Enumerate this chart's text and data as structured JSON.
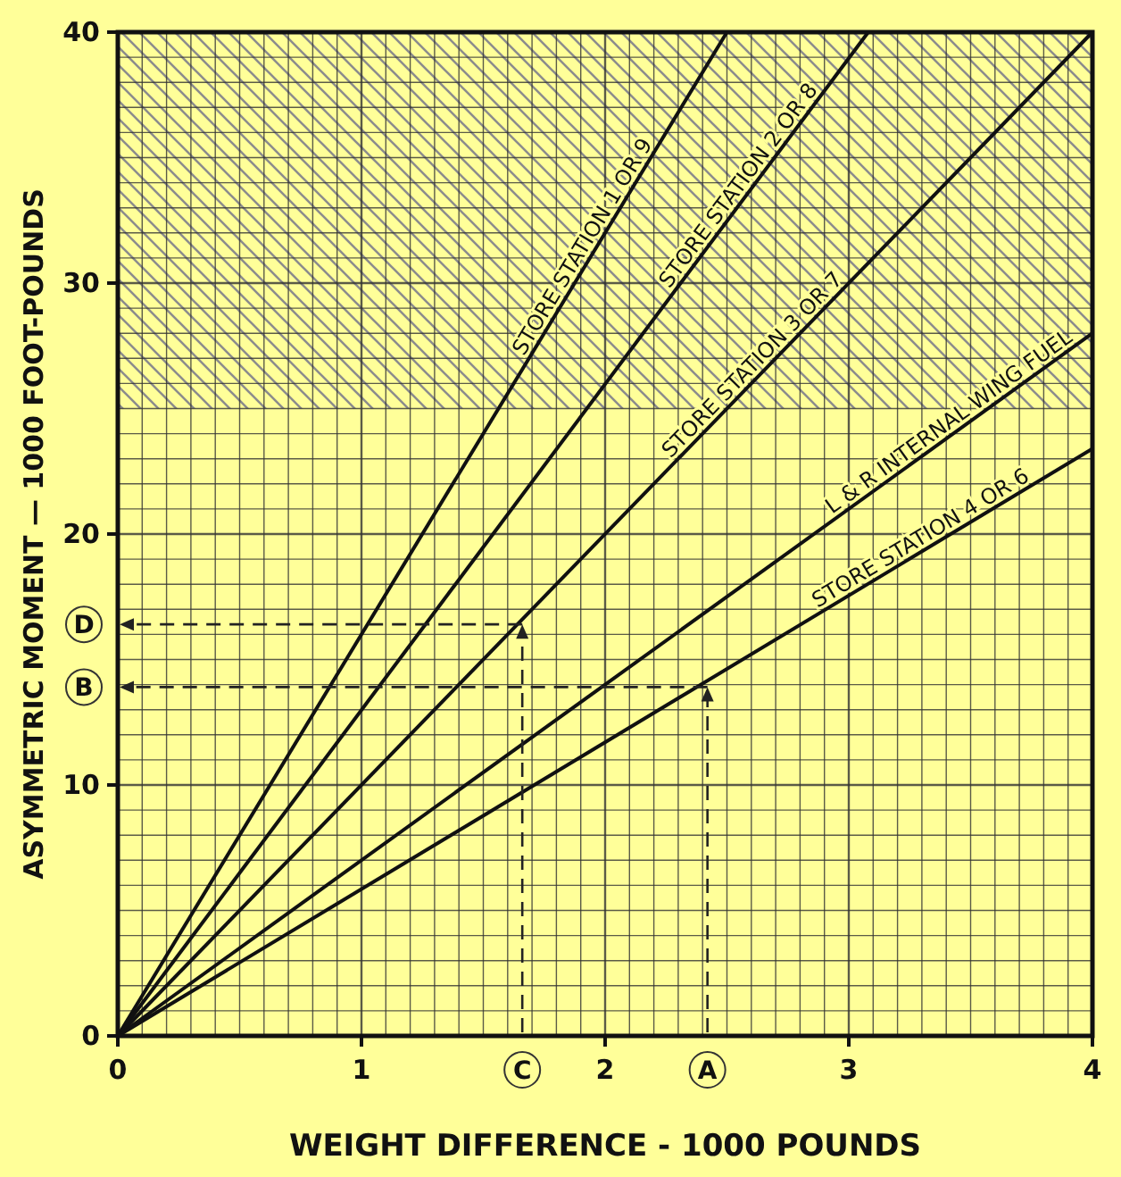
{
  "chart_data": {
    "type": "line",
    "xlabel": "WEIGHT DIFFERENCE - 1000 POUNDS",
    "ylabel": "ASYMMETRIC MOMENT — 1000 FOOT-POUNDS",
    "xlim": [
      0,
      4
    ],
    "ylim": [
      0,
      40
    ],
    "xticks": [
      0,
      {
        "value": 0.1,
        "label": null
      },
      {
        "value": 0.2,
        "label": null
      },
      {
        "value": 0.3,
        "label": null
      },
      {
        "value": 0.4,
        "label": null
      },
      {
        "value": 0.5,
        "label": null
      },
      {
        "value": 0.6,
        "label": null
      },
      {
        "value": 0.7,
        "label": null
      },
      {
        "value": 0.8,
        "label": null
      },
      {
        "value": 0.9,
        "label": null
      },
      1,
      {
        "value": 1.1,
        "label": null
      },
      {
        "value": 1.2,
        "label": null
      },
      {
        "value": 1.3,
        "label": null
      },
      {
        "value": 1.4,
        "label": null
      },
      {
        "value": 1.5,
        "label": null
      },
      {
        "value": 1.6,
        "label": null
      },
      {
        "value": 1.7,
        "label": null
      },
      {
        "value": 1.8,
        "label": null
      },
      {
        "value": 1.9,
        "label": null
      },
      2,
      {
        "value": 2.1,
        "label": null
      },
      {
        "value": 2.2,
        "label": null
      },
      {
        "value": 2.3,
        "label": null
      },
      {
        "value": 2.4,
        "label": null
      },
      {
        "value": 2.5,
        "label": null
      },
      {
        "value": 2.6,
        "label": null
      },
      {
        "value": 2.7,
        "label": null
      },
      {
        "value": 2.8,
        "label": null
      },
      {
        "value": 2.9,
        "label": null
      },
      3,
      {
        "value": 3.1,
        "label": null
      },
      {
        "value": 3.2,
        "label": null
      },
      {
        "value": 3.3,
        "label": null
      },
      {
        "value": 3.4,
        "label": null
      },
      {
        "value": 3.5,
        "label": null
      },
      {
        "value": 3.6,
        "label": null
      },
      {
        "value": 3.7,
        "label": null
      },
      {
        "value": 3.8,
        "label": null
      },
      {
        "value": 3.9,
        "label": null
      },
      4
    ],
    "yticks": [
      0,
      {
        "value": 1,
        "label": null
      },
      {
        "value": 2,
        "label": null
      },
      {
        "value": 3,
        "label": null
      },
      {
        "value": 4,
        "label": null
      },
      {
        "value": 5,
        "label": null
      },
      {
        "value": 6,
        "label": null
      },
      {
        "value": 7,
        "label": null
      },
      {
        "value": 8,
        "label": null
      },
      {
        "value": 9,
        "label": null
      },
      10,
      {
        "value": 11,
        "label": null
      },
      {
        "value": 12,
        "label": null
      },
      {
        "value": 13,
        "label": null
      },
      {
        "value": 14,
        "label": null
      },
      {
        "value": 15,
        "label": null
      },
      {
        "value": 16,
        "label": null
      },
      {
        "value": 17,
        "label": null
      },
      {
        "value": 18,
        "label": null
      },
      {
        "value": 19,
        "label": null
      },
      20,
      {
        "value": 21,
        "label": null
      },
      {
        "value": 22,
        "label": null
      },
      {
        "value": 23,
        "label": null
      },
      {
        "value": 24,
        "label": null
      },
      {
        "value": 25,
        "label": null
      },
      {
        "value": 26,
        "label": null
      },
      {
        "value": 27,
        "label": null
      },
      {
        "value": 28,
        "label": null
      },
      {
        "value": 29,
        "label": null
      },
      30,
      {
        "value": 31,
        "label": null
      },
      {
        "value": 32,
        "label": null
      },
      {
        "value": 33,
        "label": null
      },
      {
        "value": 34,
        "label": null
      },
      {
        "value": 35,
        "label": null
      },
      {
        "value": 36,
        "label": null
      },
      {
        "value": 37,
        "label": null
      },
      {
        "value": 38,
        "label": null
      },
      {
        "value": 39,
        "label": null
      },
      40
    ],
    "grid": true,
    "marker": "none",
    "line_style": "solid",
    "bands": [
      {
        "axis": "y",
        "from": 25,
        "to": 40,
        "color": "#8c8c8c"
      }
    ],
    "series": [
      {
        "name": "STORE STATION 1 OR 9",
        "color": "#111111",
        "x": [
          0,
          2.5
        ],
        "values": [
          0,
          40
        ]
      },
      {
        "name": "STORE STATION 2 OR 8",
        "color": "#111111",
        "x": [
          0,
          3.08
        ],
        "values": [
          0,
          40
        ]
      },
      {
        "name": "STORE STATION 3 OR 7",
        "color": "#111111",
        "x": [
          0,
          4
        ],
        "values": [
          0,
          40
        ]
      },
      {
        "name": "L & R INTERNAL WING FUEL",
        "color": "#111111",
        "x": [
          0,
          4
        ],
        "values": [
          0,
          28
        ]
      },
      {
        "name": "STORE STATION 4 OR 6",
        "color": "#111111",
        "x": [
          0,
          4
        ],
        "values": [
          0,
          23.4
        ]
      }
    ],
    "ref_lines": [
      {
        "axis": "x",
        "value": 2.42,
        "label": "A",
        "line_style": "dashed"
      },
      {
        "axis": "y",
        "value": 13.9,
        "label": "B",
        "line_style": "dashed"
      },
      {
        "axis": "x",
        "value": 1.66,
        "label": "C",
        "line_style": "dashed"
      },
      {
        "axis": "y",
        "value": 16.4,
        "label": "D",
        "line_style": "dashed"
      }
    ]
  }
}
